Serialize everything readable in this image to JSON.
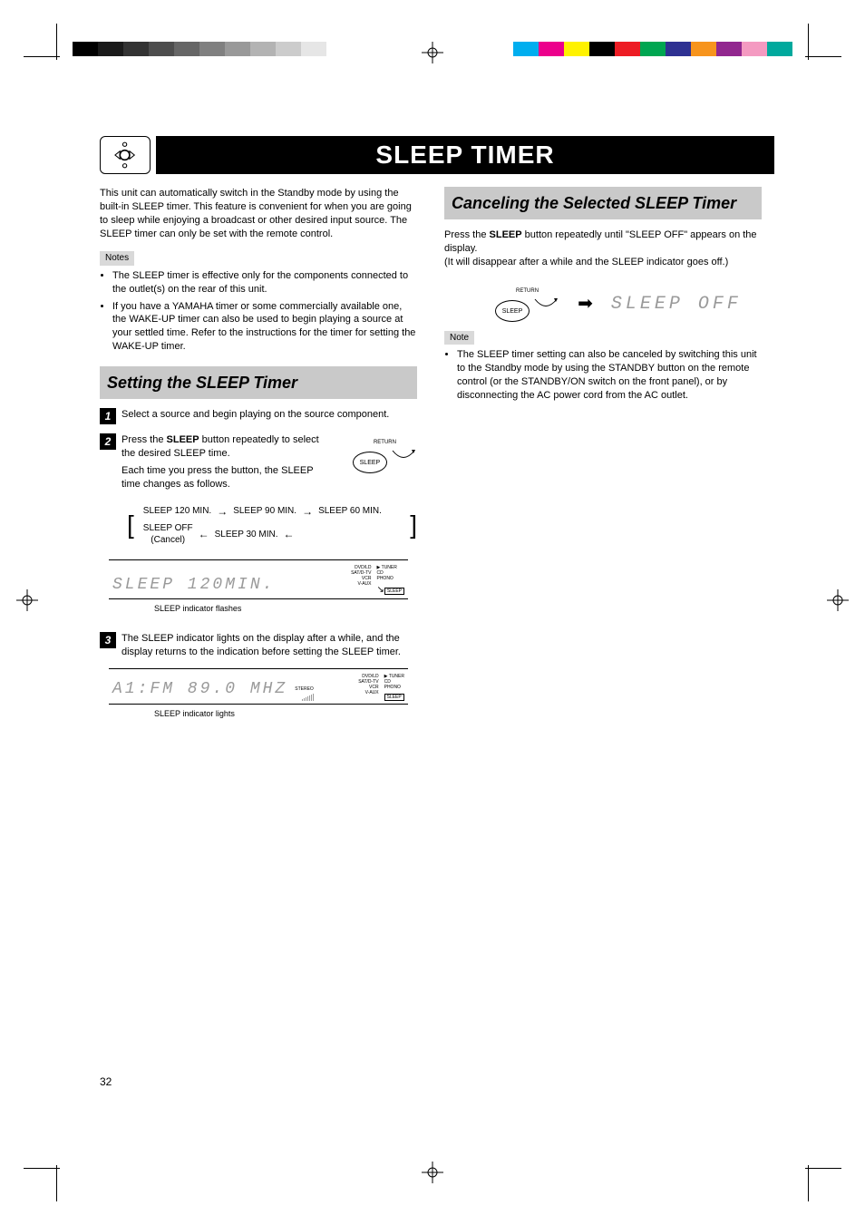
{
  "title": "SLEEP TIMER",
  "printer_marks": {
    "gray_swatches": [
      "#000000",
      "#1a1a1a",
      "#333333",
      "#4d4d4d",
      "#666666",
      "#808080",
      "#999999",
      "#b3b3b3",
      "#cccccc",
      "#e6e6e6"
    ],
    "color_swatches": [
      "#00aeef",
      "#ec008c",
      "#fff200",
      "#000000",
      "#ed1c24",
      "#00a651",
      "#2e3192",
      "#f7941d",
      "#92278f",
      "#f49ac1",
      "#00a99d"
    ]
  },
  "intro": {
    "p1": "This unit can automatically switch in the Standby mode by using the built-in SLEEP timer. This feature is convenient for when you are going to sleep while enjoying a broadcast or other desired input source. The SLEEP timer can only be set with the remote control.",
    "notes_label": "Notes",
    "notes": [
      "The SLEEP timer is effective only for the components connected to the outlet(s) on the rear of this unit.",
      "If you have a YAMAHA timer or some commercially available one, the WAKE-UP timer can also be used to begin playing a source at your settled time. Refer to the instructions for the timer for setting the WAKE-UP timer."
    ]
  },
  "setting": {
    "header": "Setting the SLEEP Timer",
    "step1": "Select a source and begin playing on the source component.",
    "step2_a": "Press the ",
    "step2_b": "SLEEP",
    "step2_c": " button repeatedly to select the desired SLEEP time.",
    "step2_d": "Each time you press the button, the SLEEP time changes as follows.",
    "sleep_btn_return": "RETURN",
    "sleep_btn_label": "SLEEP",
    "timeline": [
      "SLEEP 120 MIN.",
      "SLEEP 90 MIN.",
      "SLEEP 60 MIN.",
      "SLEEP 30 MIN.",
      "SLEEP OFF",
      "(Cancel)"
    ],
    "lcd1_text": "SLEEP 120MIN.",
    "lcd_source_labels_col1": [
      "DVD/LD",
      "SAT/D-TV",
      "VCR",
      "V-AUX"
    ],
    "lcd_source_labels_col2": [
      "TUNER",
      "CD",
      "PHONO"
    ],
    "lcd1_sleep_box": "SLEEP",
    "lcd1_note": "SLEEP indicator flashes",
    "step3_a": "The SLEEP indicator lights on the display after a while, and the display returns to the indication before setting the SLEEP timer.",
    "lcd2_text": "A1:FM 89.0 MHZ",
    "lcd2_stereo": "STEREO",
    "lcd2_sleep_box": "SLEEP",
    "lcd2_note": "SLEEP indicator lights"
  },
  "canceling": {
    "header": "Canceling the Selected SLEEP Timer",
    "p1_a": "Press the ",
    "p1_b": "SLEEP",
    "p1_c": " button repeatedly until \"SLEEP OFF\" appears on the display.",
    "p1_d": "(It will disappear after a while and the SLEEP indicator goes off.)",
    "btn_return": "RETURN",
    "btn_label": "SLEEP",
    "seg": "SLEEP OFF",
    "note_label": "Note",
    "note_text": "The SLEEP timer setting can also be canceled by switching this unit to the Standby mode by using the STANDBY button on the remote control (or the STANDBY/ON switch on the front panel), or by disconnecting the AC power cord from the AC outlet."
  },
  "page_number": "32"
}
